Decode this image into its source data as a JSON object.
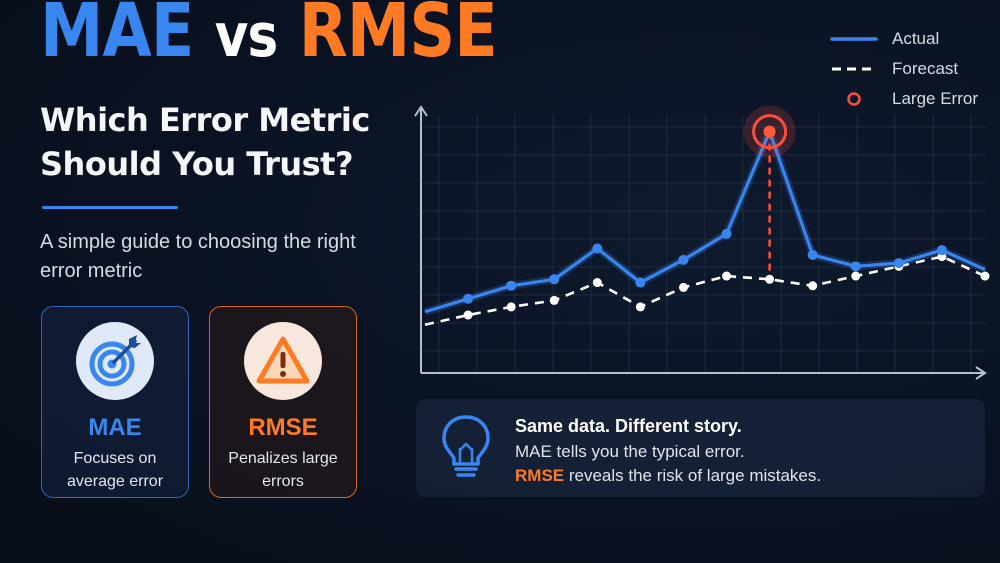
{
  "title": {
    "part1": "MAE",
    "part2": "vs",
    "part3": "RMSE"
  },
  "subtitle": "Which Error Metric Should You Trust?",
  "guide": "A simple guide to choosing the right error metric",
  "cards": [
    {
      "title": "MAE",
      "description": "Focuses on average error",
      "icon": "target-icon",
      "accent": "#3a86f0"
    },
    {
      "title": "RMSE",
      "description": "Penalizes large errors",
      "icon": "warning-icon",
      "accent": "#ff7a22"
    }
  ],
  "legend": [
    {
      "label": "Actual",
      "style": "solid",
      "color": "#3a86f0"
    },
    {
      "label": "Forecast",
      "style": "dashed",
      "color": "#ffffff"
    },
    {
      "label": "Large Error",
      "style": "marker",
      "color": "#ff4d3d"
    }
  ],
  "note": {
    "icon": "lightbulb-icon",
    "heading": "Same data. Different story.",
    "line1": "MAE tells you the typical error.",
    "line2_highlight": "RMSE",
    "line2_rest": " reveals the risk of large mistakes."
  },
  "colors": {
    "mae": "#3a86f0",
    "rmse": "#ff7a22",
    "large_error": "#ff4d3d",
    "background": "#0a1222"
  },
  "chart_data": {
    "type": "line",
    "x": [
      0,
      1,
      2,
      3,
      4,
      5,
      6,
      7,
      8,
      9,
      10,
      11,
      12,
      13
    ],
    "series": [
      {
        "name": "Actual",
        "values": [
          10,
          18,
          26,
          30,
          49,
          28,
          42,
          58,
          121,
          45,
          38,
          40,
          48,
          36
        ]
      },
      {
        "name": "Forecast",
        "values": [
          2,
          8,
          13,
          17,
          28,
          13,
          25,
          32,
          30,
          26,
          32,
          38,
          44,
          32
        ]
      }
    ],
    "large_error_index": 8,
    "ylim": [
      0,
      130
    ],
    "grid": true,
    "legend_position": "top-right",
    "title": "",
    "xlabel": "",
    "ylabel": ""
  }
}
